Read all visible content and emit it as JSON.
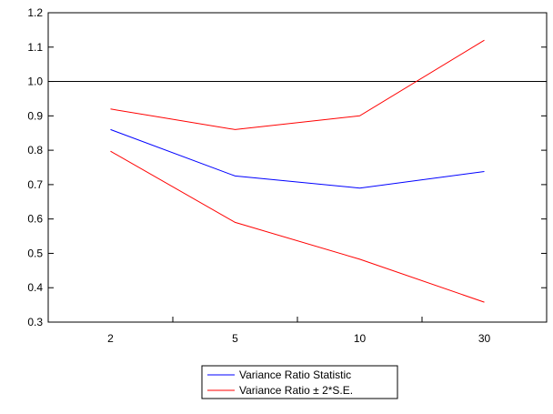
{
  "chart_data": {
    "type": "line",
    "title": "",
    "xlabel": "",
    "ylabel": "",
    "categories": [
      "2",
      "5",
      "10",
      "30"
    ],
    "ylim": [
      0.3,
      1.2
    ],
    "y_ticks": [
      "0.3",
      "0.4",
      "0.5",
      "0.6",
      "0.7",
      "0.8",
      "0.9",
      "1.0",
      "1.1",
      "1.2"
    ],
    "reference_line": {
      "y": 1.0,
      "color": "#000000"
    },
    "grid": false,
    "legend_position": "bottom-center",
    "series": [
      {
        "name": "Variance Ratio Statistic",
        "color": "#0000ff",
        "values": [
          0.86,
          0.725,
          0.69,
          0.738
        ]
      },
      {
        "name": "Variance Ratio ± 2*S.E.",
        "color": "#ff0000",
        "values": [
          0.92,
          0.86,
          0.9,
          1.12
        ]
      },
      {
        "name": "",
        "color": "#ff0000",
        "values": [
          0.797,
          0.59,
          0.483,
          0.358
        ]
      }
    ]
  },
  "legend": {
    "items": [
      "Variance Ratio Statistic",
      "Variance Ratio ± 2*S.E."
    ]
  }
}
